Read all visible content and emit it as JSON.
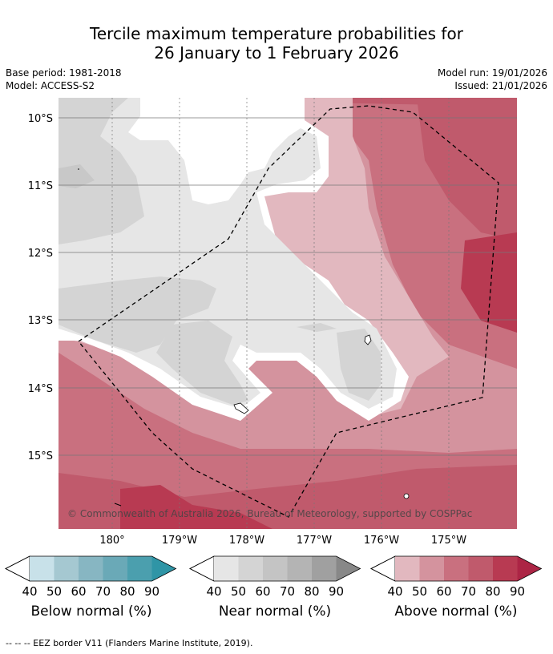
{
  "header": {
    "title_line1": "Tercile maximum temperature probabilities for",
    "title_line2": "26 January to 1 February 2026",
    "base_period": "Base period: 1981-2018",
    "model": "Model: ACCESS-S2",
    "model_run": "Model run: 19/01/2026",
    "issued": "Issued: 21/01/2026"
  },
  "map": {
    "lat_labels": [
      "10°S",
      "11°S",
      "12°S",
      "13°S",
      "14°S",
      "15°S"
    ],
    "lon_labels": [
      "180°",
      "179°W",
      "178°W",
      "177°W",
      "176°W",
      "175°W"
    ],
    "credit": "© Commonwealth of Australia 2026, Bureau of Meteorology, supported by COSPPac",
    "colors": {
      "near_40": "#e6e6e6",
      "near_50": "#d4d4d4",
      "above_40": "#e2b8bf",
      "above_50": "#d4939e",
      "above_60": "#c9707f",
      "above_70": "#c05a6c",
      "above_80": "#b83a52"
    }
  },
  "colorbars": [
    {
      "name": "Below normal (%)",
      "ticks": [
        "40",
        "50",
        "60",
        "70",
        "80",
        "90"
      ],
      "colors": [
        "#c8e1e9",
        "#a5c8d1",
        "#87b6c2",
        "#6aa9b7",
        "#4b9fae",
        "#2f95a6"
      ]
    },
    {
      "name": "Near normal (%)",
      "ticks": [
        "40",
        "50",
        "60",
        "70",
        "80",
        "90"
      ],
      "colors": [
        "#e6e6e6",
        "#d4d4d4",
        "#c4c4c4",
        "#b4b4b4",
        "#a0a0a0",
        "#888888"
      ]
    },
    {
      "name": "Above normal (%)",
      "ticks": [
        "40",
        "50",
        "60",
        "70",
        "80",
        "90"
      ],
      "colors": [
        "#e2b8bf",
        "#d4939e",
        "#c9707f",
        "#c05a6c",
        "#b83a52",
        "#ac2545"
      ]
    }
  ],
  "footnote": "-- -- -- EEZ border V11 (Flanders Marine Institute, 2019)."
}
